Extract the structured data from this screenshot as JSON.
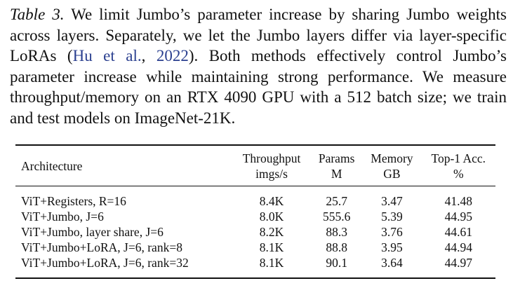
{
  "caption": {
    "label": "Table 3.",
    "text_before": " We limit Jumbo’s parameter increase by sharing Jumbo weights across layers. Separately, we let the Jumbo layers differ via layer-specific LoRAs (",
    "citation_author": "Hu et al.",
    "citation_sep": ", ",
    "citation_year": "2022",
    "text_after": "). Both methods effectively control Jumbo’s parameter increase while maintaining strong performance. We measure throughput/memory on an RTX 4090 GPU with a 512 batch size; we train and test models on ImageNet-21K."
  },
  "table": {
    "header": [
      {
        "name": "Architecture"
      },
      {
        "name": "Throughput",
        "unit": "imgs/s"
      },
      {
        "name": "Params",
        "unit": "M"
      },
      {
        "name": "Memory",
        "unit": "GB"
      },
      {
        "name": "Top-1 Acc.",
        "unit": "%"
      }
    ],
    "rows": [
      [
        "ViT+Registers, R=16",
        "8.4K",
        "25.7",
        "3.47",
        "41.48"
      ],
      [
        "ViT+Jumbo, J=6",
        "8.0K",
        "555.6",
        "5.39",
        "44.95"
      ],
      [
        "ViT+Jumbo, layer share, J=6",
        "8.2K",
        "88.3",
        "3.76",
        "44.61"
      ],
      [
        "ViT+Jumbo+LoRA, J=6, rank=8",
        "8.1K",
        "88.8",
        "3.95",
        "44.94"
      ],
      [
        "ViT+Jumbo+LoRA, J=6, rank=32",
        "8.1K",
        "90.1",
        "3.64",
        "44.97"
      ]
    ]
  }
}
